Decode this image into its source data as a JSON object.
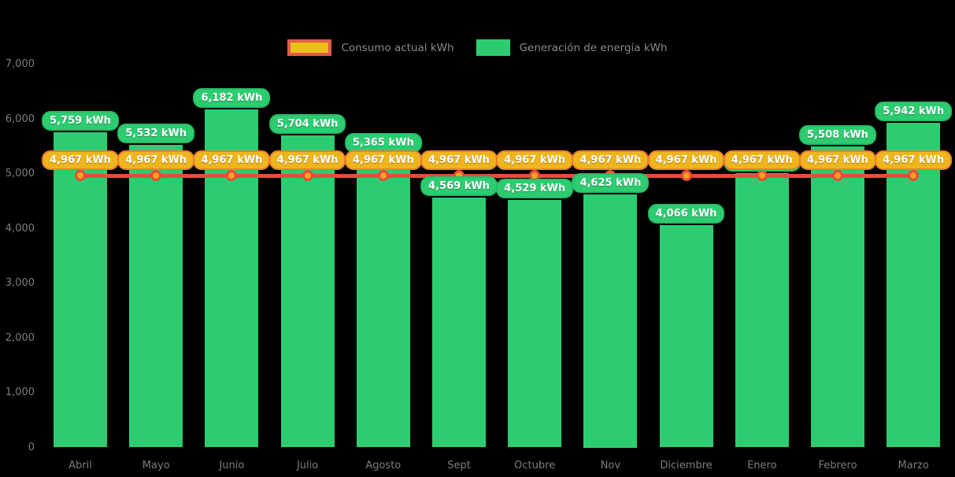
{
  "chart_data": {
    "type": "bar",
    "title": "",
    "xlabel": "",
    "ylabel": "",
    "categories": [
      "Abril",
      "Mayo",
      "Junio",
      "Julio",
      "Agosto",
      "Sept",
      "Octubre",
      "Nov",
      "Diciembre",
      "Enero",
      "Febrero",
      "Marzo"
    ],
    "series": [
      {
        "name": "Generación de energía kWh",
        "type": "bar",
        "color": "#2ecc71",
        "values": [
          5759,
          5532,
          6182,
          5704,
          5365,
          4569,
          4529,
          4625,
          4066,
          5014,
          5508,
          5942
        ],
        "labels": [
          "5,759 kWh",
          "5,532 kWh",
          "6,182 kWh",
          "5,704 kWh",
          "5,365 kWh",
          "4,569 kWh",
          "4,529 kWh",
          "4,625 kWh",
          "4,066 kWh",
          "5,014 kWh",
          "5,508 kWh",
          "5,942 kWh"
        ],
        "label_occluded": [
          false,
          false,
          false,
          false,
          false,
          false,
          false,
          false,
          false,
          true,
          false,
          false
        ]
      },
      {
        "name": "Consumo actual kWh",
        "type": "line",
        "color": "#e74c3c",
        "marker_color": "#f5a51d",
        "values": [
          4967,
          4967,
          4967,
          4967,
          4967,
          4967,
          4967,
          4967,
          4967,
          4967,
          4967,
          4967
        ],
        "labels": [
          "4,967 kWh",
          "4,967 kWh",
          "4,967 kWh",
          "4,967 kWh",
          "4,967 kWh",
          "4,967 kWh",
          "4,967 kWh",
          "4,967 kWh",
          "4,967 kWh",
          "4,967 kWh",
          "4,967 kWh",
          "4,967 kWh"
        ]
      }
    ],
    "ylim": [
      0,
      7000
    ],
    "ytick_values": [
      7000,
      6000,
      5000,
      4000,
      3000,
      2000,
      1000,
      0
    ],
    "ytick_labels": [
      "7,000",
      "6,000",
      "5,000",
      "4,000",
      "3,000",
      "2,000",
      "1,000",
      "0"
    ],
    "grid": false,
    "legend_position": "top"
  },
  "legend": {
    "items": [
      {
        "label": "Consumo actual kWh"
      },
      {
        "label": "Generación de energía kWh"
      }
    ]
  },
  "colors": {
    "background": "#000000",
    "bar": "#2ecc71",
    "bar_label_bg": "#2ecc71",
    "bar_label_text": "#ffffff",
    "line": "#e74c3c",
    "marker_fill": "#f5a51d",
    "consumption_label_bg": "#eeb51e",
    "consumption_label_border": "#ef7d33",
    "legend_consumo_fill": "#e9c119",
    "legend_consumo_border": "#e25c49",
    "axis_text": "#7d7d7d",
    "legend_text": "#8a8a8a"
  }
}
